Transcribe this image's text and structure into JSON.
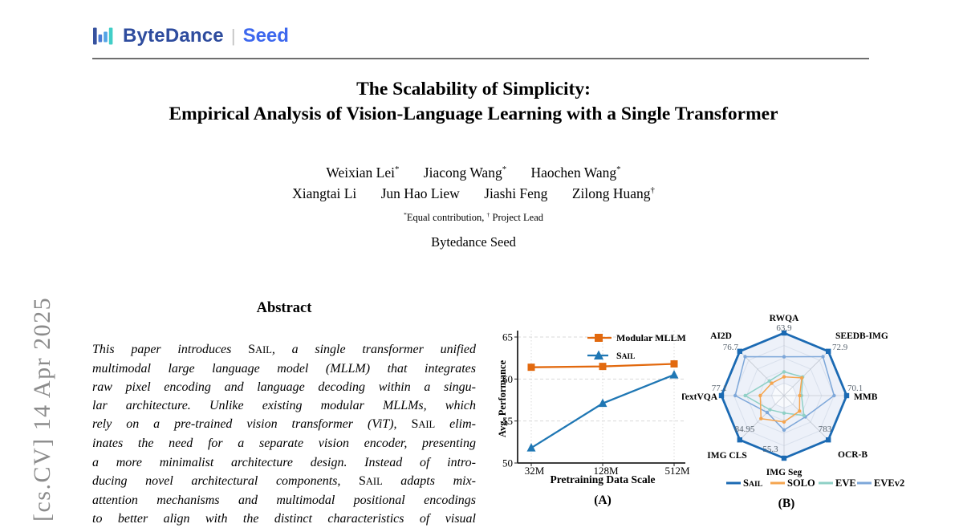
{
  "sidebar": {
    "arxiv_text": "[cs.CV]  14 Apr 2025"
  },
  "header": {
    "logo": {
      "bytedance": "ByteDance",
      "divider": "|",
      "seed": "Seed",
      "bar_colors": [
        "#36519E",
        "#4B7BD5",
        "#52A3E5",
        "#41CEC7"
      ],
      "bytedance_color": "#2E4C9E",
      "seed_color": "#3D68EE"
    }
  },
  "paper": {
    "title_line1": "The Scalability of Simplicity:",
    "title_line2": "Empirical Analysis of Vision-Language Learning with a Single Transformer",
    "authors_row1": [
      {
        "name": "Weixian Lei",
        "mark": "*"
      },
      {
        "name": "Jiacong Wang",
        "mark": "*"
      },
      {
        "name": "Haochen Wang",
        "mark": "*"
      }
    ],
    "authors_row2": [
      {
        "name": "Xiangtai Li",
        "mark": ""
      },
      {
        "name": "Jun Hao Liew",
        "mark": ""
      },
      {
        "name": "Jiashi Feng",
        "mark": ""
      },
      {
        "name": "Zilong Huang",
        "mark": "†"
      }
    ],
    "note": {
      "star": "*",
      "equal": "Equal contribution,",
      "dagger": "†",
      "lead": "Project Lead"
    },
    "affiliation": "Bytedance Seed"
  },
  "abstract": {
    "heading": "Abstract",
    "lines": [
      "This paper introduces SAIL, a single transformer unified",
      "multimodal large language model (MLLM) that integrates",
      "raw pixel encoding and language decoding within a singu-",
      "lar architecture.  Unlike existing modular MLLMs, which",
      "rely on a pre-trained vision transformer (ViT), SAIL elim-",
      "inates the need for a separate vision encoder, presenting",
      "a more minimalist architecture design.  Instead of intro-",
      "ducing novel architectural components, SAIL adapts mix-",
      "attention mechanisms and multimodal positional encodings",
      "to better align with the distinct characteristics of visual"
    ]
  },
  "chart_data": [
    {
      "type": "line",
      "caption": "(A)",
      "xlabel": "Pretraining Data Scale",
      "ylabel": "Avg. Performance",
      "categories": [
        "32M",
        "128M",
        "512M"
      ],
      "ylim": [
        50,
        65
      ],
      "yticks": [
        50,
        55,
        60,
        65
      ],
      "grid": true,
      "legend_position": "upper center inside",
      "series": [
        {
          "name": "Modular MLLM",
          "color": "#E2690E",
          "marker": "square",
          "smallcaps": false,
          "values": [
            61.4,
            61.5,
            61.8
          ]
        },
        {
          "name": "SAIL",
          "color": "#1F77B4",
          "marker": "triangle",
          "smallcaps": true,
          "values": [
            51.8,
            57.1,
            60.5
          ]
        }
      ]
    },
    {
      "type": "radar",
      "caption": "(B)",
      "axes": [
        "RWQA",
        "SEEDB-IMG",
        "MMB",
        "OCR-B",
        "IMG Seg",
        "IMG CLS",
        "TextVQA",
        "AI2D"
      ],
      "sail_values": [
        63.9,
        72.9,
        70.1,
        783,
        55.3,
        84.95,
        77.1,
        76.7
      ],
      "legend_position": "bottom",
      "series": [
        {
          "name": "SAIL",
          "color": "#1B6AB3",
          "fractions": [
            1,
            1,
            1,
            1,
            1,
            1,
            1,
            1
          ]
        },
        {
          "name": "SOLO",
          "color": "#F5A54F",
          "fractions": [
            0.3,
            0.4,
            0.25,
            0.35,
            0.42,
            0.52,
            0.38,
            0.28
          ]
        },
        {
          "name": "EVE",
          "color": "#8FD0C6",
          "fractions": [
            0.38,
            0.42,
            0.28,
            0.45,
            0.28,
            0.32,
            0.62,
            0.33
          ]
        },
        {
          "name": "EVEv2",
          "color": "#7DA7D9",
          "fractions": [
            0.62,
            0.88,
            0.8,
            0.48,
            0.55,
            0.38,
            0.78,
            0.88
          ]
        }
      ]
    }
  ]
}
